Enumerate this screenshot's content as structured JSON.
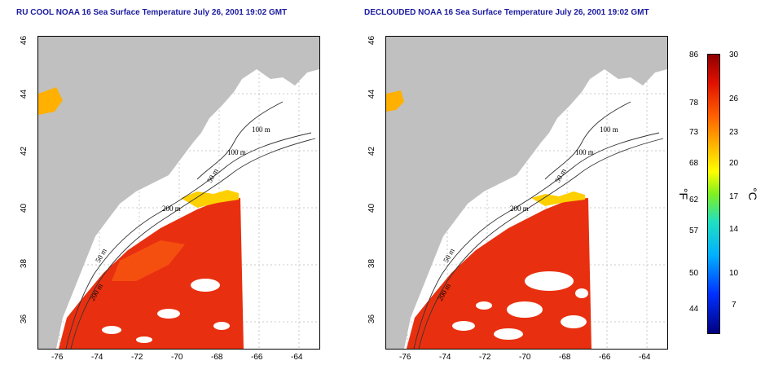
{
  "panels": [
    {
      "title": "RU COOL NOAA 16 Sea Surface Temperature July 26, 2001 19:02 GMT",
      "isobath_labels": [
        "100 m",
        "100 m",
        "50 m",
        "200 m",
        "50 m",
        "200 m"
      ]
    },
    {
      "title": "DECLOUDED NOAA 16 Sea Surface Temperature July 26, 2001 19:02 GMT",
      "isobath_labels": [
        "100 m",
        "100 m",
        "50 m",
        "200 m",
        "50 m",
        "200 m"
      ]
    }
  ],
  "axes": {
    "x_ticks": [
      "-76",
      "-74",
      "-72",
      "-70",
      "-68",
      "-66",
      "-64"
    ],
    "y_ticks": [
      "46",
      "44",
      "42",
      "40",
      "38",
      "36"
    ]
  },
  "colorbar": {
    "fahrenheit_labels": [
      "86",
      "78",
      "73",
      "68",
      "62",
      "57",
      "50",
      "44"
    ],
    "celsius_labels": [
      "30",
      "26",
      "23",
      "20",
      "17",
      "14",
      "10",
      "7"
    ],
    "unit_f": "°F",
    "unit_c": "°C"
  },
  "colors": {
    "land": "#c0c0c0",
    "sst_warm": "#e83010",
    "title": "#1a1aa0"
  }
}
